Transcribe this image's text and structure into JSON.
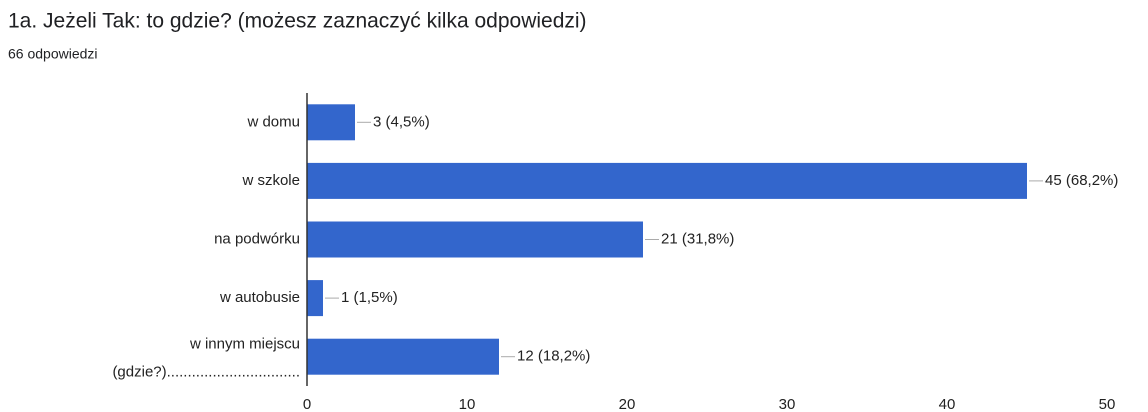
{
  "chart_data": {
    "type": "bar",
    "orientation": "horizontal",
    "title": "1a. Jeżeli Tak: to gdzie? (możesz zaznaczyć kilka odpowiedzi)",
    "subtitle": "66 odpowiedzi",
    "categories": [
      "w domu",
      "w szkole",
      "na podwórku",
      "w autobusie",
      "w innym miejscu\n(gdzie?)................................"
    ],
    "values": [
      3,
      45,
      21,
      1,
      12
    ],
    "value_labels": [
      "3 (4,5%)",
      "45 (68,2%)",
      "21 (31,8%)",
      "1 (1,5%)",
      "12 (18,2%)"
    ],
    "color": "#3366cc",
    "xlim": [
      0,
      50
    ],
    "xticks": [
      0,
      10,
      20,
      30,
      40,
      50
    ],
    "grid": false
  }
}
